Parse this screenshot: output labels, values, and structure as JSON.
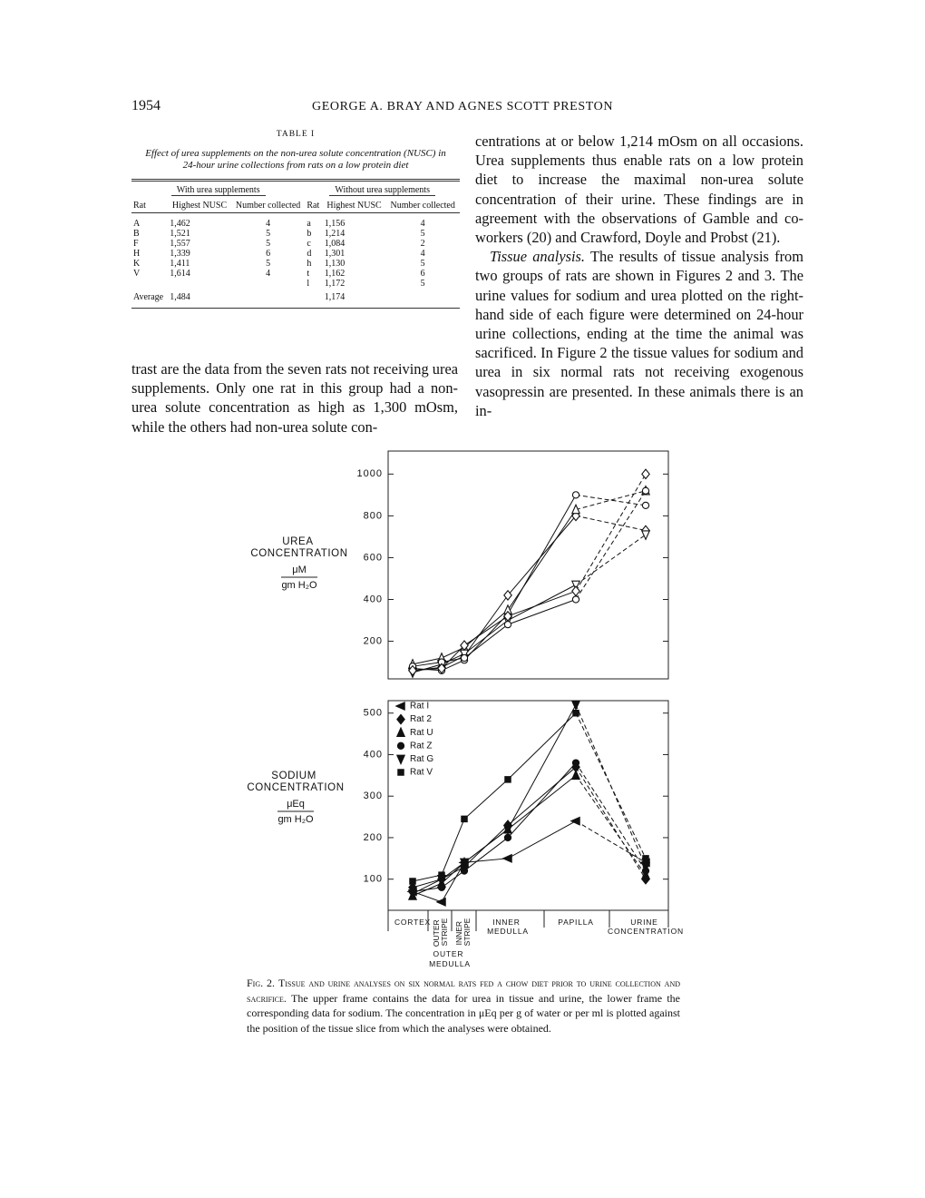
{
  "header": {
    "page_number": "1954",
    "running_title": "GEORGE A. BRAY AND AGNES SCOTT PRESTON"
  },
  "table": {
    "label": "TABLE I",
    "caption": "Effect of urea supplements on the non-urea solute concentration (NUSC) in 24-hour urine collections from rats on a low protein diet",
    "group_headers": [
      "With urea supplements",
      "Without urea supplements"
    ],
    "columns": [
      "Rat",
      "Highest NUSC",
      "Number collected",
      "Rat",
      "Highest NUSC",
      "Number collected"
    ],
    "with_urea": {
      "rows": [
        [
          "A",
          "1,462",
          "4"
        ],
        [
          "B",
          "1,521",
          "5"
        ],
        [
          "F",
          "1,557",
          "5"
        ],
        [
          "H",
          "1,339",
          "6"
        ],
        [
          "K",
          "1,411",
          "5"
        ],
        [
          "V",
          "1,614",
          "4"
        ]
      ],
      "average_label": "Average",
      "average": "1,484"
    },
    "without_urea": {
      "rows": [
        [
          "a",
          "1,156",
          "4"
        ],
        [
          "b",
          "1,214",
          "5"
        ],
        [
          "c",
          "1,084",
          "2"
        ],
        [
          "d",
          "1,301",
          "4"
        ],
        [
          "h",
          "1,130",
          "5"
        ],
        [
          "t",
          "1,162",
          "6"
        ],
        [
          "l",
          "1,172",
          "5"
        ]
      ],
      "average": "1,174"
    }
  },
  "left_column": {
    "text": "trast are the data from the seven rats not receiving urea supplements. Only one rat in this group had a non-urea solute concentration as high as 1,300 mOsm, while the others had non-urea solute con-"
  },
  "right_column": {
    "paragraph_1": "centrations at or below 1,214 mOsm on all occasions. Urea supplements thus enable rats on a low protein diet to increase the maximal non-urea solute concentration of their urine. These findings are in agreement with the observations of Gamble and co-workers (20) and Crawford, Doyle and Probst (21).",
    "paragraph_2_lead": "Tissue analysis.",
    "paragraph_2": "The results of tissue analysis from two groups of rats are shown in Figures 2 and 3. The urine values for sodium and urea plotted on the right-hand side of each figure were determined on 24-hour urine collections, ending at the time the animal was sacrificed. In Figure 2 the tissue values for sodium and urea in six normal rats not receiving exogenous vasopressin are presented. In these animals there is an in-"
  },
  "chart_data": [
    {
      "type": "line",
      "y_label": "UREA CONCENTRATION",
      "y_unit": "μM",
      "y_unit_denominator": "gm H₂O",
      "ylim": [
        20,
        1110
      ],
      "yticks": [
        200,
        400,
        600,
        800,
        1000
      ],
      "grid": false,
      "series": [
        {
          "marker": "diamond",
          "filled": false,
          "color": "#111",
          "values": [
            60,
            75,
            130,
            420,
            800,
            730
          ]
        },
        {
          "marker": "circle",
          "filled": false,
          "color": "#111",
          "values": [
            70,
            60,
            110,
            330,
            900,
            850
          ]
        },
        {
          "marker": "triangle-up",
          "filled": false,
          "color": "#111",
          "values": [
            90,
            120,
            170,
            350,
            830,
            920
          ]
        },
        {
          "marker": "triangle-down",
          "filled": false,
          "color": "#111",
          "values": [
            50,
            90,
            140,
            300,
            470,
            710
          ]
        },
        {
          "marker": "circle",
          "filled": false,
          "color": "#111",
          "values": [
            80,
            100,
            120,
            280,
            400,
            920
          ]
        },
        {
          "marker": "diamond",
          "filled": false,
          "color": "#111",
          "values": [
            60,
            70,
            180,
            320,
            440,
            1000
          ]
        }
      ]
    },
    {
      "type": "line",
      "y_label": "SODIUM CONCENTRATION",
      "y_unit": "μEq",
      "y_unit_denominator": "gm H₂O",
      "ylim": [
        25,
        530
      ],
      "yticks": [
        100,
        200,
        300,
        400,
        500
      ],
      "grid": false,
      "legend": "upper left",
      "categories": [
        "CORTEX",
        "OUTER STRIPE",
        "INNER STRIPE",
        "INNER MEDULLA",
        "PAPILLA",
        "URINE CONCENTRATION"
      ],
      "group_label": "OUTER MEDULLA",
      "series": [
        {
          "name": "Rat I",
          "marker": "triangle-left",
          "filled": true,
          "color": "#111",
          "values": [
            70,
            45,
            140,
            150,
            240,
            140
          ]
        },
        {
          "name": "Rat 2",
          "marker": "diamond",
          "filled": true,
          "color": "#111",
          "values": [
            80,
            100,
            130,
            230,
            370,
            100
          ]
        },
        {
          "name": "Rat U",
          "marker": "triangle-up",
          "filled": true,
          "color": "#111",
          "values": [
            60,
            90,
            140,
            220,
            350,
            110
          ]
        },
        {
          "name": "Rat Z",
          "marker": "circle",
          "filled": true,
          "color": "#111",
          "values": [
            70,
            80,
            120,
            200,
            380,
            120
          ]
        },
        {
          "name": "Rat G",
          "marker": "triangle-down",
          "filled": true,
          "color": "#111",
          "values": [
            65,
            100,
            140,
            220,
            520,
            130
          ]
        },
        {
          "name": "Rat V",
          "marker": "square",
          "filled": true,
          "color": "#111",
          "values": [
            95,
            110,
            245,
            340,
            500,
            150
          ]
        }
      ]
    }
  ],
  "figure_caption": {
    "label": "Fig. 2.",
    "title": "Tissue and urine analyses on six normal rats fed a chow diet prior to urine collection and sacrifice.",
    "text": "The upper frame contains the data for urea in tissue and urine, the lower frame the corresponding data for sodium. The concentration in μEq per g of water or per ml is plotted against the position of the tissue slice from which the analyses were obtained."
  }
}
